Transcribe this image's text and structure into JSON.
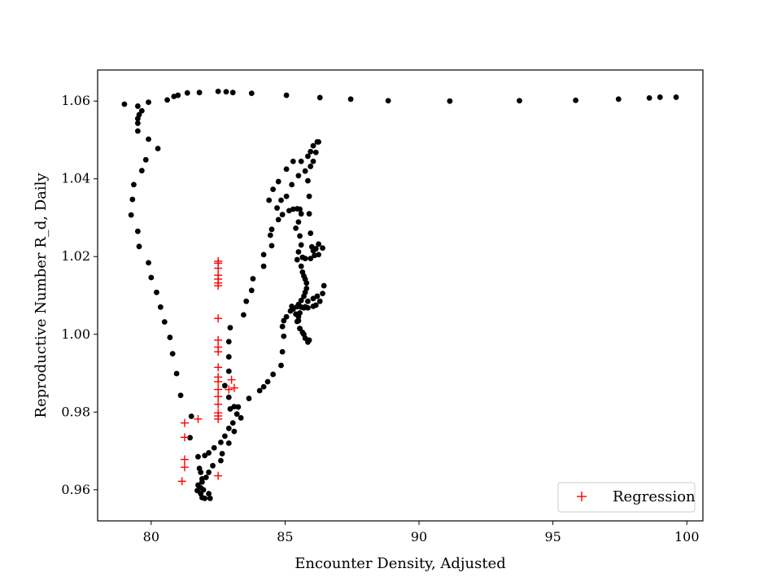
{
  "chart_data": {
    "type": "scatter",
    "xlabel": "Encounter Density, Adjusted",
    "ylabel": "Reproductive Number R_d, Daily",
    "xlim": [
      78,
      100.6
    ],
    "ylim": [
      0.952,
      1.068
    ],
    "xticks": [
      80,
      85,
      90,
      95,
      100
    ],
    "yticks": [
      0.96,
      0.98,
      1.0,
      1.02,
      1.04,
      1.06
    ],
    "ytick_labels": [
      "0.96",
      "0.98",
      "1.00",
      "1.02",
      "1.04",
      "1.06"
    ],
    "grid": false,
    "legend": {
      "position": "lower-right",
      "entries": [
        "Regression"
      ]
    },
    "series": [
      {
        "marker": "dot",
        "color": "#000000",
        "points": [
          [
            79.0,
            1.0592
          ],
          [
            79.5,
            1.0587
          ],
          [
            79.9,
            1.0597
          ],
          [
            79.65,
            1.0575
          ],
          [
            79.55,
            1.0565
          ],
          [
            79.5,
            1.0555
          ],
          [
            79.5,
            1.0543
          ],
          [
            79.5,
            1.0523
          ],
          [
            79.9,
            1.0502
          ],
          [
            80.25,
            1.0478
          ],
          [
            79.8,
            1.0449
          ],
          [
            79.65,
            1.0421
          ],
          [
            79.35,
            1.0385
          ],
          [
            79.3,
            1.0347
          ],
          [
            79.25,
            1.0307
          ],
          [
            79.5,
            1.0265
          ],
          [
            79.55,
            1.0226
          ],
          [
            79.9,
            1.0184
          ],
          [
            80.0,
            1.0146
          ],
          [
            80.2,
            1.0108
          ],
          [
            80.35,
            1.007
          ],
          [
            80.5,
            1.0032
          ],
          [
            80.7,
            0.9992
          ],
          [
            80.8,
            0.995
          ],
          [
            80.95,
            0.9899
          ],
          [
            81.1,
            0.9843
          ],
          [
            81.5,
            0.9789
          ],
          [
            81.45,
            0.9734
          ],
          [
            81.75,
            0.9685
          ],
          [
            82.0,
            0.9688
          ],
          [
            82.15,
            0.9695
          ],
          [
            82.35,
            0.9708
          ],
          [
            82.6,
            0.9722
          ],
          [
            82.75,
            0.9738
          ],
          [
            82.9,
            0.9758
          ],
          [
            83.05,
            0.9772
          ],
          [
            83.2,
            0.9795
          ],
          [
            83.25,
            0.9813
          ],
          [
            83.1,
            0.9814
          ],
          [
            82.95,
            0.9808
          ],
          [
            82.9,
            0.9838
          ],
          [
            82.75,
            0.9868
          ],
          [
            82.9,
            0.9905
          ],
          [
            82.9,
            0.9942
          ],
          [
            82.9,
            0.9981
          ],
          [
            82.95,
            1.0017
          ],
          [
            83.45,
            1.005
          ],
          [
            83.55,
            1.0085
          ],
          [
            83.75,
            1.0113
          ],
          [
            83.8,
            1.0143
          ],
          [
            84.2,
            1.0175
          ],
          [
            84.2,
            1.0205
          ],
          [
            84.5,
            1.0228
          ],
          [
            84.45,
            1.0255
          ],
          [
            84.5,
            1.027
          ],
          [
            84.75,
            1.0295
          ],
          [
            84.9,
            1.0308
          ],
          [
            85.15,
            1.0318
          ],
          [
            85.3,
            1.0322
          ],
          [
            85.45,
            1.0323
          ],
          [
            85.55,
            1.0322
          ],
          [
            85.6,
            1.031
          ],
          [
            85.5,
            1.0289
          ],
          [
            85.4,
            1.0273
          ],
          [
            85.55,
            1.0253
          ],
          [
            85.6,
            1.023
          ],
          [
            85.5,
            1.0212
          ],
          [
            85.45,
            1.0192
          ],
          [
            85.6,
            1.0175
          ],
          [
            85.65,
            1.016
          ],
          [
            85.7,
            1.015
          ],
          [
            85.75,
            1.0142
          ],
          [
            85.8,
            1.0132
          ],
          [
            85.8,
            1.0118
          ],
          [
            85.75,
            1.0108
          ],
          [
            85.7,
            1.0098
          ],
          [
            85.6,
            1.0087
          ],
          [
            85.5,
            1.0077
          ],
          [
            85.45,
            1.0071
          ],
          [
            85.6,
            1.007
          ],
          [
            85.75,
            1.0071
          ],
          [
            85.85,
            1.0068
          ],
          [
            86.05,
            1.0072
          ],
          [
            86.15,
            1.0075
          ],
          [
            86.3,
            1.0085
          ],
          [
            86.4,
            1.0105
          ],
          [
            86.45,
            1.0125
          ],
          [
            86.2,
            1.0098
          ],
          [
            86.05,
            1.0092
          ],
          [
            85.85,
            1.0085
          ],
          [
            85.7,
            1.0068
          ],
          [
            85.55,
            1.0055
          ],
          [
            85.5,
            1.0045
          ],
          [
            85.45,
            1.0033
          ],
          [
            85.55,
            1.0015
          ],
          [
            85.65,
            1.0005
          ],
          [
            85.75,
            0.999
          ],
          [
            85.85,
            0.998
          ],
          [
            85.9,
            0.9985
          ],
          [
            85.7,
            1.0
          ],
          [
            85.55,
            1.0015
          ],
          [
            85.5,
            1.0035
          ],
          [
            85.4,
            1.0052
          ],
          [
            85.3,
            1.0065
          ],
          [
            85.25,
            1.0072
          ],
          [
            85.2,
            1.006
          ],
          [
            85.05,
            1.0045
          ],
          [
            84.95,
            1.0035
          ],
          [
            84.9,
            1.002
          ],
          [
            84.95,
            0.9995
          ],
          [
            84.9,
            0.9955
          ],
          [
            84.85,
            0.992
          ],
          [
            84.55,
            0.9897
          ],
          [
            84.35,
            0.9878
          ],
          [
            84.2,
            0.9865
          ],
          [
            84.05,
            0.9855
          ],
          [
            83.65,
            0.9835
          ],
          [
            83.35,
            0.9785
          ],
          [
            83.1,
            0.975
          ],
          [
            82.9,
            0.972
          ],
          [
            82.65,
            0.9693
          ],
          [
            82.6,
            0.9675
          ],
          [
            82.3,
            0.9662
          ],
          [
            82.15,
            0.9645
          ],
          [
            82.05,
            0.9632
          ],
          [
            81.9,
            0.962
          ],
          [
            81.85,
            0.9605
          ],
          [
            81.85,
            0.959
          ],
          [
            81.9,
            0.958
          ],
          [
            82.0,
            0.9578
          ],
          [
            82.15,
            0.959
          ],
          [
            82.2,
            0.9578
          ],
          [
            81.95,
            0.96
          ],
          [
            81.9,
            0.9628
          ],
          [
            81.85,
            0.9645
          ],
          [
            81.8,
            0.9655
          ],
          [
            81.75,
            0.9612
          ],
          [
            81.72,
            0.9598
          ],
          [
            85.05,
            1.0355
          ],
          [
            85.25,
            1.0385
          ],
          [
            85.5,
            1.0408
          ],
          [
            85.75,
            1.042
          ],
          [
            85.85,
            1.0395
          ],
          [
            85.9,
            1.0355
          ],
          [
            85.9,
            1.031
          ],
          [
            85.95,
            1.026
          ],
          [
            86.0,
            1.0225
          ],
          [
            86.05,
            1.0215
          ],
          [
            86.15,
            1.022
          ],
          [
            86.25,
            1.0232
          ],
          [
            86.4,
            1.0222
          ],
          [
            86.25,
            1.0205
          ],
          [
            86.1,
            1.0203
          ],
          [
            85.95,
            1.0195
          ],
          [
            85.75,
            1.0195
          ],
          [
            85.65,
            1.0198
          ],
          [
            84.7,
            1.0325
          ],
          [
            84.85,
            1.0345
          ],
          [
            85.6,
            1.0445
          ],
          [
            85.85,
            1.0458
          ],
          [
            85.95,
            1.047
          ],
          [
            86.05,
            1.0485
          ],
          [
            86.2,
            1.0495
          ],
          [
            86.25,
            1.0495
          ],
          [
            86.15,
            1.0468
          ],
          [
            86.05,
            1.0445
          ],
          [
            85.95,
            1.0432
          ],
          [
            85.3,
            1.0445
          ],
          [
            85.05,
            1.0425
          ],
          [
            84.75,
            1.0393
          ],
          [
            84.55,
            1.0373
          ],
          [
            84.4,
            1.0345
          ],
          [
            80.6,
            1.0603
          ],
          [
            80.85,
            1.0612
          ],
          [
            81.0,
            1.0615
          ],
          [
            81.35,
            1.0621
          ],
          [
            81.8,
            1.0622
          ],
          [
            82.5,
            1.0625
          ],
          [
            82.8,
            1.0624
          ],
          [
            83.05,
            1.0622
          ],
          [
            83.75,
            1.062
          ],
          [
            85.05,
            1.0615
          ],
          [
            86.3,
            1.0609
          ],
          [
            87.45,
            1.0605
          ],
          [
            88.85,
            1.0601
          ],
          [
            91.15,
            1.06
          ],
          [
            93.75,
            1.0601
          ],
          [
            95.85,
            1.0602
          ],
          [
            97.45,
            1.0605
          ],
          [
            98.6,
            1.0608
          ],
          [
            99.0,
            1.061
          ],
          [
            99.6,
            1.061
          ]
        ]
      },
      {
        "name": "Regression",
        "marker": "plus",
        "color": "#ff0000",
        "points": [
          [
            82.5,
            1.0188
          ],
          [
            82.5,
            1.0183
          ],
          [
            82.5,
            1.017
          ],
          [
            82.5,
            1.0152
          ],
          [
            82.5,
            1.0142
          ],
          [
            82.5,
            1.0132
          ],
          [
            82.5,
            1.0125
          ],
          [
            82.5,
            1.0041
          ],
          [
            82.5,
            0.9985
          ],
          [
            82.5,
            0.9967
          ],
          [
            82.5,
            0.9955
          ],
          [
            82.5,
            0.9915
          ],
          [
            82.5,
            0.989
          ],
          [
            82.5,
            0.9878
          ],
          [
            82.5,
            0.9858
          ],
          [
            82.5,
            0.984
          ],
          [
            82.5,
            0.982
          ],
          [
            82.5,
            0.9798
          ],
          [
            82.5,
            0.979
          ],
          [
            82.5,
            0.9782
          ],
          [
            82.5,
            0.9636
          ],
          [
            83.0,
            0.9883
          ],
          [
            83.1,
            0.9862
          ],
          [
            82.9,
            0.9858
          ],
          [
            81.75,
            0.9782
          ],
          [
            81.25,
            0.9772
          ],
          [
            81.25,
            0.9735
          ],
          [
            81.25,
            0.9678
          ],
          [
            81.25,
            0.9658
          ],
          [
            81.15,
            0.9622
          ]
        ]
      }
    ]
  }
}
